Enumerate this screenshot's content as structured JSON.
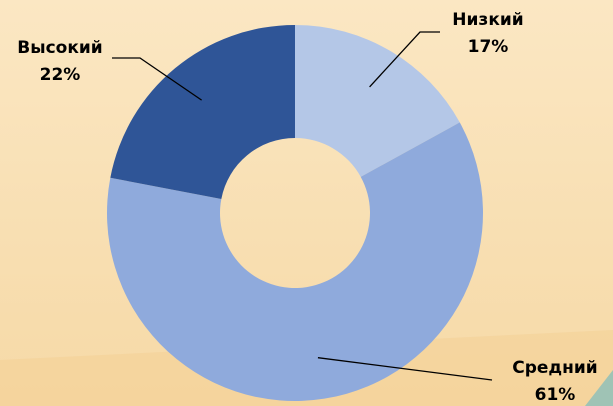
{
  "chart_data": {
    "type": "donut",
    "categories": [
      "Низкий",
      "Средний",
      "Высокий"
    ],
    "values": [
      17,
      61,
      22
    ],
    "value_labels": [
      "17%",
      "61%",
      "22%"
    ],
    "colors": [
      "#b4c7e7",
      "#8faadc",
      "#2f5597"
    ]
  }
}
